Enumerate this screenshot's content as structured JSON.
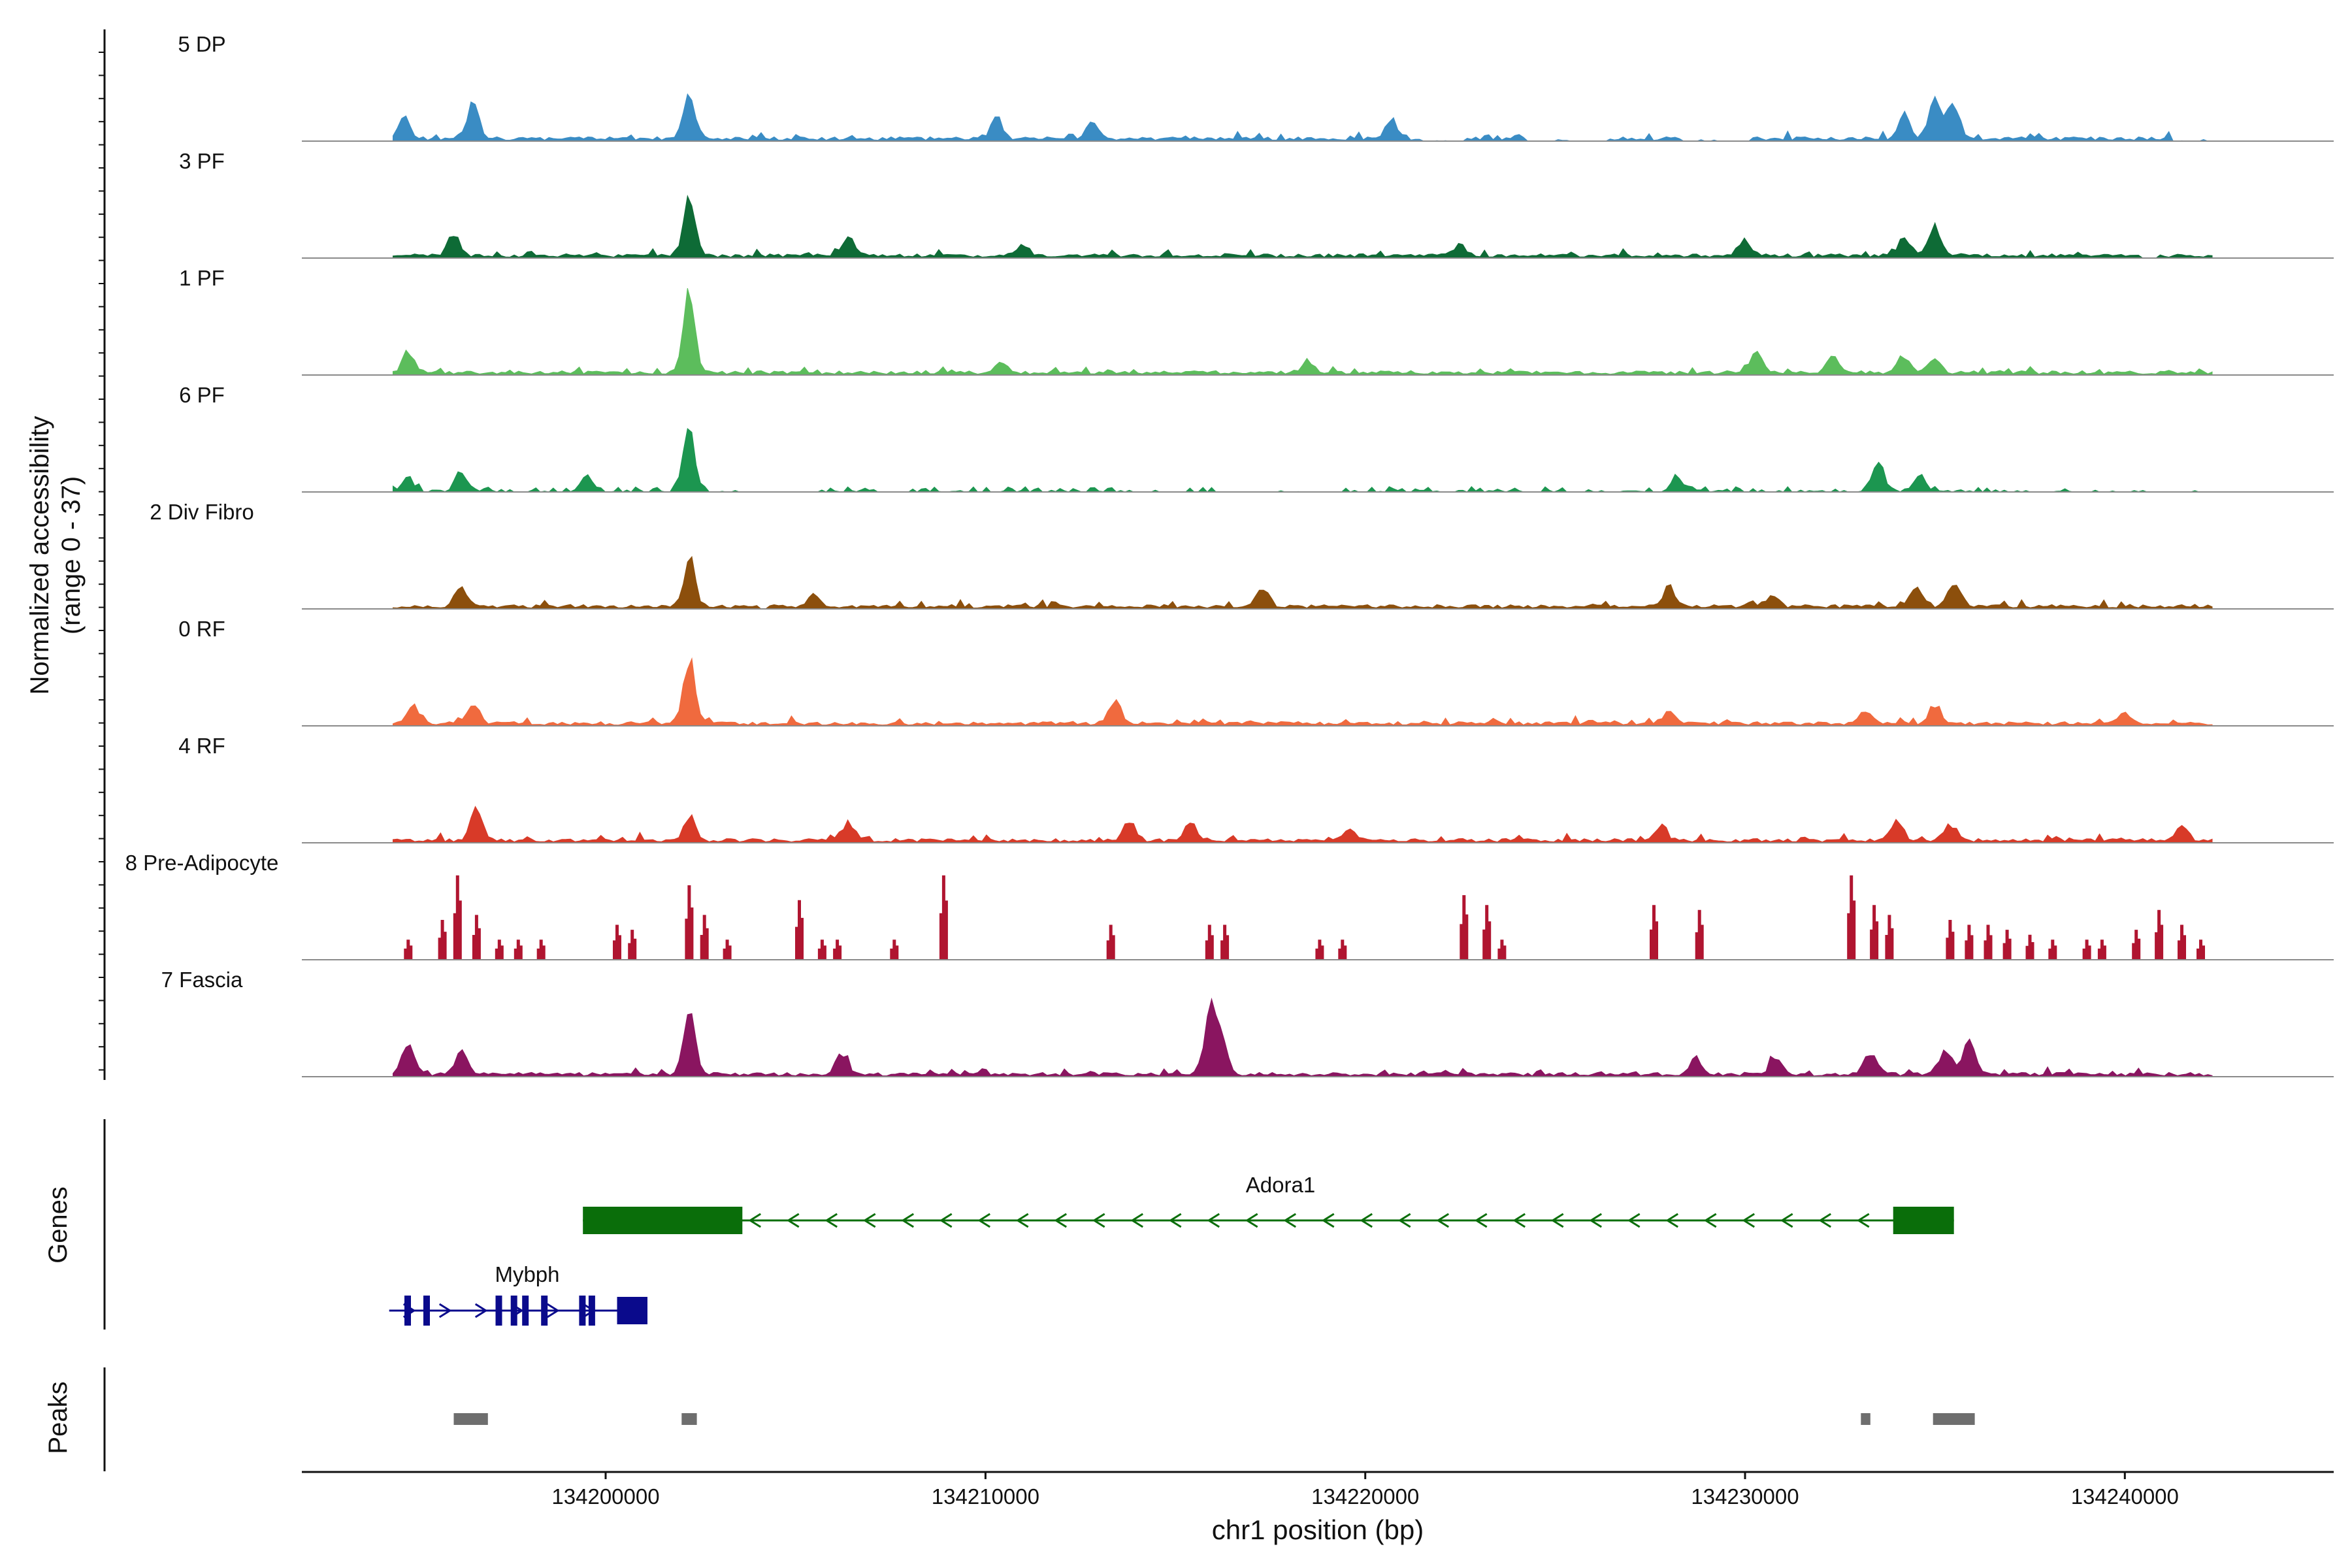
{
  "chart_data": {
    "type": "area",
    "title": "",
    "ylabel_line1": "Normalized accessibility",
    "ylabel_line2": "(range 0 - 37)",
    "y_range": [
      0,
      37
    ],
    "xlabel": "chr1 position (bp)",
    "xlim": [
      134192000,
      134245500
    ],
    "xticks": [
      134200000,
      134210000,
      134220000,
      134230000,
      134240000
    ],
    "xtick_labels": [
      "134200000",
      "134210000",
      "134220000",
      "134230000",
      "134240000"
    ],
    "data_start": 134194400,
    "data_end": 134242300,
    "tracks": [
      {
        "name": "5 DP",
        "color": "#3a8cc4",
        "pattern": "dense",
        "seed": 11,
        "peaks": [
          [
            134196500,
            15
          ],
          [
            134202200,
            18
          ],
          [
            134235000,
            20
          ],
          [
            134235500,
            17
          ],
          [
            134234200,
            10
          ],
          [
            134210300,
            9
          ],
          [
            134212800,
            7
          ],
          [
            134220700,
            8
          ],
          [
            134194700,
            9
          ]
        ],
        "gaps": [
          [
            134221500,
            134222600
          ],
          [
            134224200,
            134226400
          ],
          [
            134228300,
            134230200
          ],
          [
            134241200,
            134242300
          ]
        ]
      },
      {
        "name": "3 PF",
        "color": "#0e6b36",
        "pattern": "dense",
        "seed": 23,
        "peaks": [
          [
            134196000,
            10
          ],
          [
            134202200,
            26
          ],
          [
            134206400,
            9
          ],
          [
            134235000,
            12
          ],
          [
            134234200,
            8
          ],
          [
            134211000,
            5
          ],
          [
            134230000,
            6
          ],
          [
            134222500,
            5
          ]
        ],
        "gaps": [
          [
            134240400,
            134240900
          ]
        ]
      },
      {
        "name": "1 PF",
        "color": "#5cbd5c",
        "pattern": "dense",
        "seed": 37,
        "peaks": [
          [
            134202200,
            32
          ],
          [
            134194800,
            9
          ],
          [
            134230300,
            10
          ],
          [
            134232300,
            7
          ],
          [
            134234200,
            8
          ],
          [
            134235000,
            6
          ],
          [
            134210400,
            5
          ],
          [
            134218500,
            5
          ]
        ],
        "gaps": []
      },
      {
        "name": "6 PF",
        "color": "#1c9650",
        "pattern": "sparse",
        "seed": 41,
        "peaks": [
          [
            134202200,
            26
          ],
          [
            134196200,
            9
          ],
          [
            134199500,
            8
          ],
          [
            134233500,
            13
          ],
          [
            134234600,
            8
          ],
          [
            134228200,
            6
          ],
          [
            134194800,
            6
          ]
        ],
        "gaps": [
          [
            134203500,
            134205400
          ],
          [
            134213500,
            134215000
          ],
          [
            134216500,
            134219000
          ],
          [
            134236900,
            134238000
          ],
          [
            134238500,
            134240000
          ],
          [
            134240500,
            134242300
          ]
        ]
      },
      {
        "name": "2 Div Fibro",
        "color": "#8c4f0c",
        "pattern": "dense",
        "seed": 53,
        "peaks": [
          [
            134202200,
            20
          ],
          [
            134196200,
            10
          ],
          [
            134205500,
            6
          ],
          [
            134217300,
            8
          ],
          [
            134228000,
            8
          ],
          [
            134230700,
            5
          ],
          [
            134235500,
            10
          ],
          [
            134234500,
            9
          ]
        ],
        "gaps": [
          [
            134204000,
            134204300
          ]
        ]
      },
      {
        "name": "0 RF",
        "color": "#f06a3e",
        "pattern": "dense",
        "seed": 67,
        "peaks": [
          [
            134202200,
            26
          ],
          [
            134194900,
            8
          ],
          [
            134196500,
            9
          ],
          [
            134213400,
            9
          ],
          [
            134228000,
            5
          ],
          [
            134233200,
            5
          ],
          [
            134235000,
            8
          ],
          [
            134240000,
            5
          ]
        ],
        "gaps": []
      },
      {
        "name": "4 RF",
        "color": "#d83a28",
        "pattern": "dense",
        "seed": 71,
        "peaks": [
          [
            134196600,
            15
          ],
          [
            134202200,
            11
          ],
          [
            134206400,
            8
          ],
          [
            134213800,
            9
          ],
          [
            134215400,
            8
          ],
          [
            134219600,
            5
          ],
          [
            134227800,
            6
          ],
          [
            134234000,
            8
          ],
          [
            134235400,
            7
          ],
          [
            134241500,
            6
          ]
        ],
        "gaps": []
      },
      {
        "name": "8 Pre-Adipocyte",
        "color": "#b01530",
        "pattern": "spiky",
        "peaks": [
          [
            134194800,
            8
          ],
          [
            134195700,
            16
          ],
          [
            134196100,
            34
          ],
          [
            134196600,
            18
          ],
          [
            134197200,
            8
          ],
          [
            134197700,
            8
          ],
          [
            134198300,
            8
          ],
          [
            134200300,
            14
          ],
          [
            134200700,
            12
          ],
          [
            134202200,
            30
          ],
          [
            134202600,
            18
          ],
          [
            134203200,
            8
          ],
          [
            134205100,
            24
          ],
          [
            134205700,
            8
          ],
          [
            134206100,
            8
          ],
          [
            134207600,
            8
          ],
          [
            134208900,
            34
          ],
          [
            134213300,
            14
          ],
          [
            134215900,
            14
          ],
          [
            134216300,
            14
          ],
          [
            134218800,
            8
          ],
          [
            134219400,
            8
          ],
          [
            134222600,
            26
          ],
          [
            134223200,
            22
          ],
          [
            134223600,
            8
          ],
          [
            134227600,
            22
          ],
          [
            134228800,
            20
          ],
          [
            134232800,
            34
          ],
          [
            134233400,
            22
          ],
          [
            134233800,
            18
          ],
          [
            134235400,
            16
          ],
          [
            134235900,
            14
          ],
          [
            134236400,
            14
          ],
          [
            134236900,
            12
          ],
          [
            134237500,
            10
          ],
          [
            134238100,
            8
          ],
          [
            134239000,
            8
          ],
          [
            134239400,
            8
          ],
          [
            134240300,
            12
          ],
          [
            134240900,
            20
          ],
          [
            134241500,
            14
          ],
          [
            134242000,
            8
          ]
        ]
      },
      {
        "name": "7 Fascia",
        "color": "#8a1560",
        "pattern": "dense",
        "seed": 89,
        "peaks": [
          [
            134194800,
            14
          ],
          [
            134196200,
            10
          ],
          [
            134202200,
            27
          ],
          [
            134206200,
            10
          ],
          [
            134215900,
            27
          ],
          [
            134216200,
            16
          ],
          [
            134233300,
            10
          ],
          [
            134235300,
            10
          ],
          [
            134235900,
            15
          ],
          [
            134230800,
            8
          ],
          [
            134228700,
            7
          ]
        ],
        "gaps": []
      }
    ],
    "genes_label": "Genes",
    "genes": [
      {
        "name": "Adora1",
        "strand": "-",
        "color": "#0a6e0a",
        "start": 134199400,
        "end": 134235500,
        "exons": [
          [
            134199400,
            134203600
          ],
          [
            134233900,
            134235500
          ]
        ]
      },
      {
        "name": "Mybph",
        "strand": "+",
        "color": "#0a0a8c",
        "start": 134194300,
        "end": 134201100,
        "exons": [
          [
            134194700,
            134194850
          ],
          [
            134195200,
            134195300
          ],
          [
            134197100,
            134197250
          ],
          [
            134197500,
            134197650
          ],
          [
            134197800,
            134197950
          ],
          [
            134198300,
            134198450
          ],
          [
            134199300,
            134199400
          ],
          [
            134199550,
            134199700
          ],
          [
            134200300,
            134201100
          ]
        ]
      }
    ],
    "peaks_label": "Peaks",
    "peak_regions": [
      [
        134196000,
        134196900
      ],
      [
        134202000,
        134202400
      ],
      [
        134233050,
        134233300
      ],
      [
        134234950,
        134236050
      ]
    ]
  }
}
